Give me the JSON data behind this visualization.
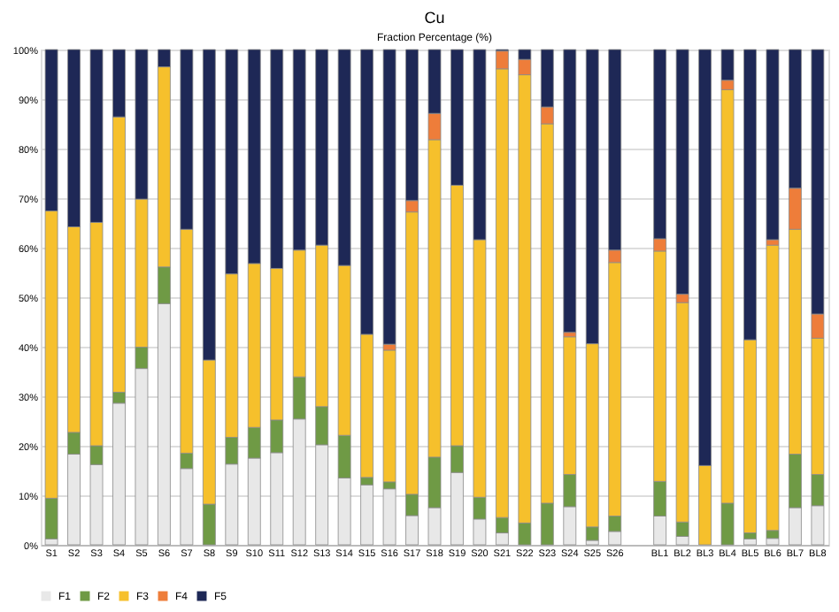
{
  "chart_data": {
    "type": "bar",
    "title": "Cu",
    "subtitle": "Fraction Percentage (%)",
    "stacked": true,
    "categories": [
      "S1",
      "S2",
      "S3",
      "S4",
      "S5",
      "S6",
      "S7",
      "S8",
      "S9",
      "S10",
      "S11",
      "S12",
      "S13",
      "S14",
      "S15",
      "S16",
      "S17",
      "S18",
      "S19",
      "S20",
      "S21",
      "S22",
      "S23",
      "S24",
      "S25",
      "S26",
      null,
      "BL1",
      "BL2",
      "BL3",
      "BL4",
      "BL5",
      "BL6",
      "BL7",
      "BL8"
    ],
    "series": [
      {
        "name": "F1",
        "color": "#e8e8e8",
        "values": [
          1.2,
          18.3,
          16.2,
          28.6,
          35.6,
          48.7,
          15.4,
          null,
          16.3,
          17.5,
          18.6,
          25.4,
          20.2,
          13.5,
          12.1,
          11.3,
          5.9,
          7.5,
          14.6,
          5.2,
          2.4,
          null,
          null,
          7.7,
          0.9,
          2.7,
          null,
          5.8,
          1.7,
          null,
          null,
          1.2,
          1.3,
          7.5,
          7.9
        ]
      },
      {
        "name": "F2",
        "color": "#6f9a45",
        "values": [
          8.2,
          4.4,
          3.8,
          2.2,
          4.3,
          7.4,
          3.1,
          8.2,
          5.4,
          6.2,
          6.6,
          8.5,
          7.7,
          8.6,
          1.5,
          1.4,
          4.3,
          10.2,
          5.4,
          4.4,
          3.1,
          4.4,
          8.4,
          6.5,
          2.7,
          3.1,
          null,
          7.0,
          2.9,
          null,
          8.4,
          1.2,
          1.6,
          10.8,
          6.3
        ]
      },
      {
        "name": "F3",
        "color": "#f6c02c",
        "values": [
          58.0,
          41.5,
          45.1,
          55.6,
          29.9,
          40.4,
          45.2,
          29.1,
          33.0,
          33.1,
          30.6,
          25.6,
          32.6,
          34.3,
          28.9,
          26.6,
          57.0,
          64.1,
          52.6,
          52.0,
          90.6,
          90.5,
          76.6,
          27.8,
          37.0,
          51.2,
          null,
          46.5,
          44.3,
          16.0,
          83.5,
          39.0,
          57.6,
          45.4,
          27.5
        ]
      },
      {
        "name": "F4",
        "color": "#ee7d3a",
        "values": [
          null,
          null,
          null,
          null,
          null,
          null,
          null,
          null,
          null,
          null,
          null,
          null,
          null,
          null,
          null,
          1.2,
          2.3,
          5.3,
          null,
          null,
          3.6,
          3.1,
          3.4,
          0.9,
          null,
          2.5,
          null,
          2.5,
          1.7,
          null,
          1.9,
          null,
          1.1,
          8.3,
          4.9
        ]
      },
      {
        "name": "F5",
        "color": "#1e2856",
        "values": [
          32.6,
          35.8,
          34.9,
          13.6,
          30.2,
          3.5,
          36.3,
          62.7,
          45.3,
          43.2,
          44.2,
          40.5,
          39.5,
          43.6,
          57.5,
          59.5,
          30.5,
          12.9,
          27.4,
          38.4,
          0.3,
          2.0,
          11.6,
          57.1,
          59.4,
          40.5,
          null,
          38.2,
          49.4,
          84.0,
          6.2,
          58.6,
          38.4,
          28.0,
          53.4
        ]
      }
    ],
    "ylim": [
      0,
      100
    ],
    "yticks": [
      {
        "value": 0,
        "label": "0%"
      },
      {
        "value": 10,
        "label": "10%"
      },
      {
        "value": 20,
        "label": "20%"
      },
      {
        "value": 30,
        "label": "30%"
      },
      {
        "value": 40,
        "label": "40%"
      },
      {
        "value": 50,
        "label": "50%"
      },
      {
        "value": 60,
        "label": "60%"
      },
      {
        "value": 70,
        "label": "70%"
      },
      {
        "value": 80,
        "label": "80%"
      },
      {
        "value": 90,
        "label": "90%"
      },
      {
        "value": 100,
        "label": "100%"
      }
    ],
    "grid": "y",
    "legend": "bottom"
  }
}
